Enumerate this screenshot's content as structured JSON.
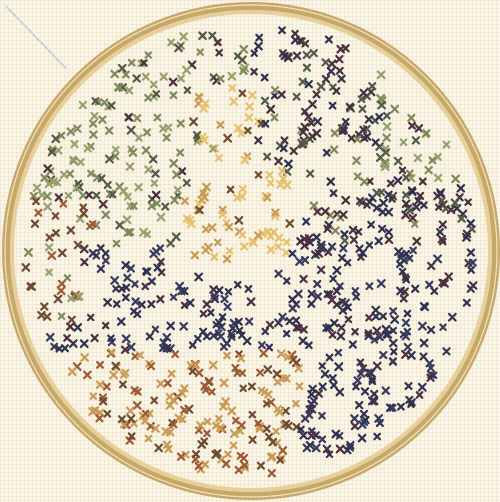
{
  "scene": {
    "kind": "cross-stitch embroidery on fabric in a wooden hoop",
    "colors": {
      "fabric": "#fbf6e8",
      "hoop_outer": "#c7a86b",
      "hoop_inner": "#e6cf98",
      "hoop_highlight": "#f3e3b8",
      "needle": "#c9c9c9"
    },
    "stitch_glyph": "x-icon",
    "palette": {
      "gold": "#e7c06e",
      "amber": "#c99a54",
      "rust": "#9c5a34",
      "brown": "#6e4a2f",
      "sage": "#7f8a5c",
      "olive": "#97a06a",
      "slate": "#4f5a47",
      "plum": "#4a2f3f",
      "navy": "#2f3150",
      "ink": "#363a5c"
    },
    "regions": [
      {
        "name": "golden-center",
        "weights": {
          "gold": 6,
          "amber": 3,
          "brown": 1
        }
      },
      {
        "name": "sage-upper-left",
        "weights": {
          "sage": 4,
          "olive": 3,
          "slate": 2,
          "plum": 1
        }
      },
      {
        "name": "plum-upper-right",
        "weights": {
          "plum": 4,
          "navy": 3,
          "slate": 2,
          "sage": 1
        }
      },
      {
        "name": "navy-lower",
        "weights": {
          "navy": 5,
          "ink": 3,
          "plum": 2
        }
      },
      {
        "name": "amber-bottom",
        "weights": {
          "amber": 5,
          "rust": 3,
          "brown": 2
        }
      },
      {
        "name": "rust-left",
        "weights": {
          "rust": 3,
          "brown": 3,
          "olive": 2,
          "sage": 2
        }
      }
    ]
  }
}
